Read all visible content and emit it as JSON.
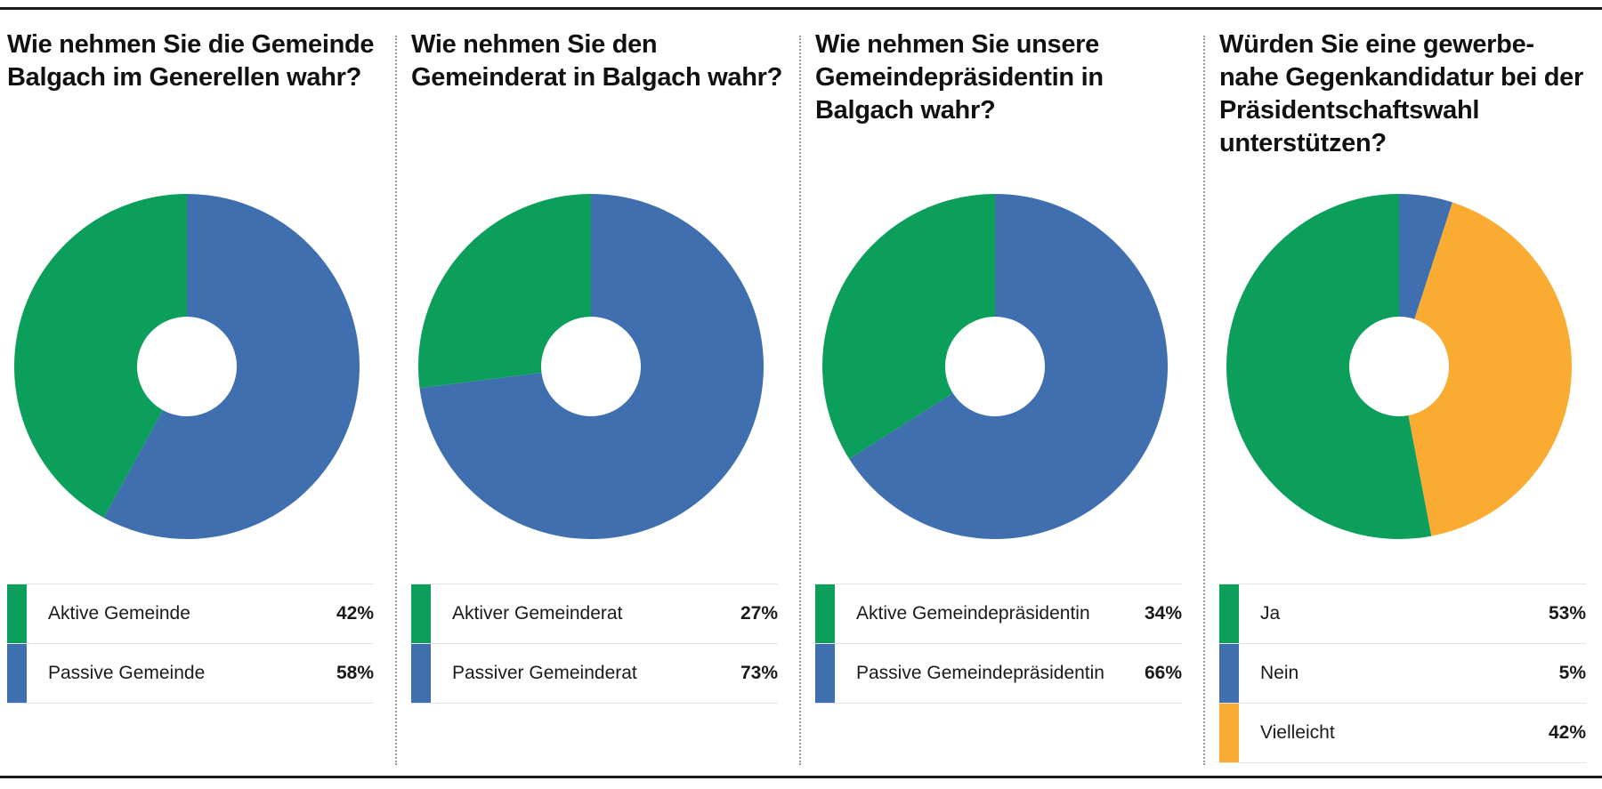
{
  "colors": {
    "green": "#0b9f5b",
    "blue": "#3f6fae",
    "orange": "#f9ac31"
  },
  "chart_data": [
    {
      "type": "pie",
      "title": "Wie nehmen Sie die Gemeinde Balgach im Generellen wahr?",
      "categories": [
        "Aktive Gemeinde",
        "Passive Gemeinde"
      ],
      "values": [
        42,
        58
      ],
      "value_labels": [
        "42%",
        "58%"
      ],
      "colors": [
        "#0b9f5b",
        "#3f6fae"
      ],
      "legend": "bottom"
    },
    {
      "type": "pie",
      "title": "Wie nehmen Sie den Gemeinderat in Balgach wahr?",
      "categories": [
        "Aktiver Gemeinderat",
        "Passiver Gemeinderat"
      ],
      "values": [
        27,
        73
      ],
      "value_labels": [
        "27%",
        "73%"
      ],
      "colors": [
        "#0b9f5b",
        "#3f6fae"
      ],
      "legend": "bottom"
    },
    {
      "type": "pie",
      "title": "Wie nehmen Sie unsere Gemeindepräsidentin in Balgach wahr?",
      "categories": [
        "Aktive Gemeindepräsidentin",
        "Passive Gemeindepräsidentin"
      ],
      "values": [
        34,
        66
      ],
      "value_labels": [
        "34%",
        "66%"
      ],
      "colors": [
        "#0b9f5b",
        "#3f6fae"
      ],
      "legend": "bottom"
    },
    {
      "type": "pie",
      "title": "Würden Sie eine gewerbe- nahe Gegenkandidatur bei der Präsidentschaftswahl unterstützen?",
      "categories": [
        "Ja",
        "Nein",
        "Vielleicht"
      ],
      "values": [
        53,
        5,
        42
      ],
      "value_labels": [
        "53%",
        "5%",
        "42%"
      ],
      "colors": [
        "#0b9f5b",
        "#3f6fae",
        "#f9ac31"
      ],
      "legend": "bottom"
    }
  ]
}
